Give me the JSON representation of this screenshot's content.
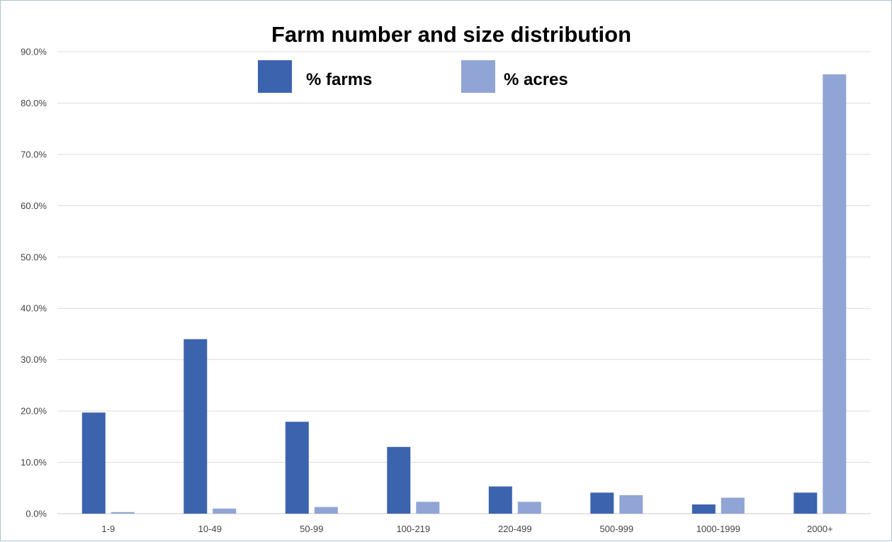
{
  "chart_data": {
    "type": "bar",
    "title": "Farm number and size distribution",
    "xlabel": "",
    "ylabel": "",
    "ylim": [
      0,
      90
    ],
    "y_ticks": [
      "0.0%",
      "10.0%",
      "20.0%",
      "30.0%",
      "40.0%",
      "50.0%",
      "60.0%",
      "70.0%",
      "80.0%",
      "90.0%"
    ],
    "grid": true,
    "legend_position": "top",
    "categories": [
      "1-9",
      "10-49",
      "50-99",
      "100-219",
      "220-499",
      "500-999",
      "1000-1999",
      "2000+"
    ],
    "series": [
      {
        "name": "% farms",
        "color": "#3c63ae",
        "values": [
          19.7,
          34.0,
          17.9,
          13.0,
          5.3,
          4.1,
          1.8,
          4.1
        ]
      },
      {
        "name": "% acres",
        "color": "#91a4d6",
        "values": [
          0.3,
          1.0,
          1.3,
          2.3,
          2.3,
          3.6,
          3.1,
          85.6
        ]
      }
    ]
  }
}
